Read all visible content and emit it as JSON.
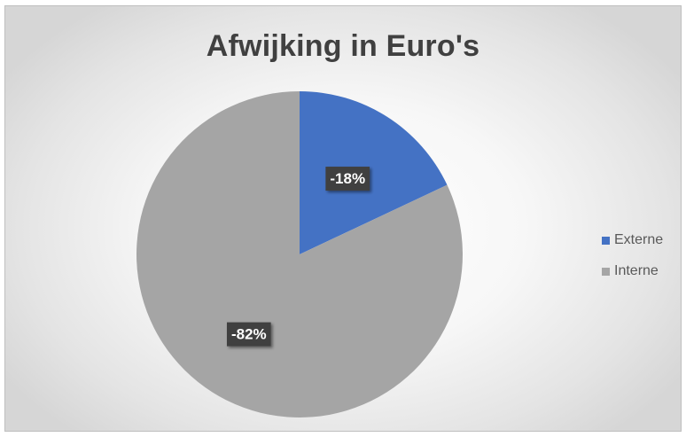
{
  "chart_data": {
    "type": "pie",
    "title": "Afwijking in Euro's",
    "categories": [
      "Externe",
      "Interne"
    ],
    "values": [
      -18,
      -82
    ],
    "data_labels": [
      "-18%",
      "-82%"
    ],
    "colors": [
      "#4472C4",
      "#A5A5A5"
    ],
    "legend_position": "right",
    "start_angle": "top, clockwise"
  }
}
